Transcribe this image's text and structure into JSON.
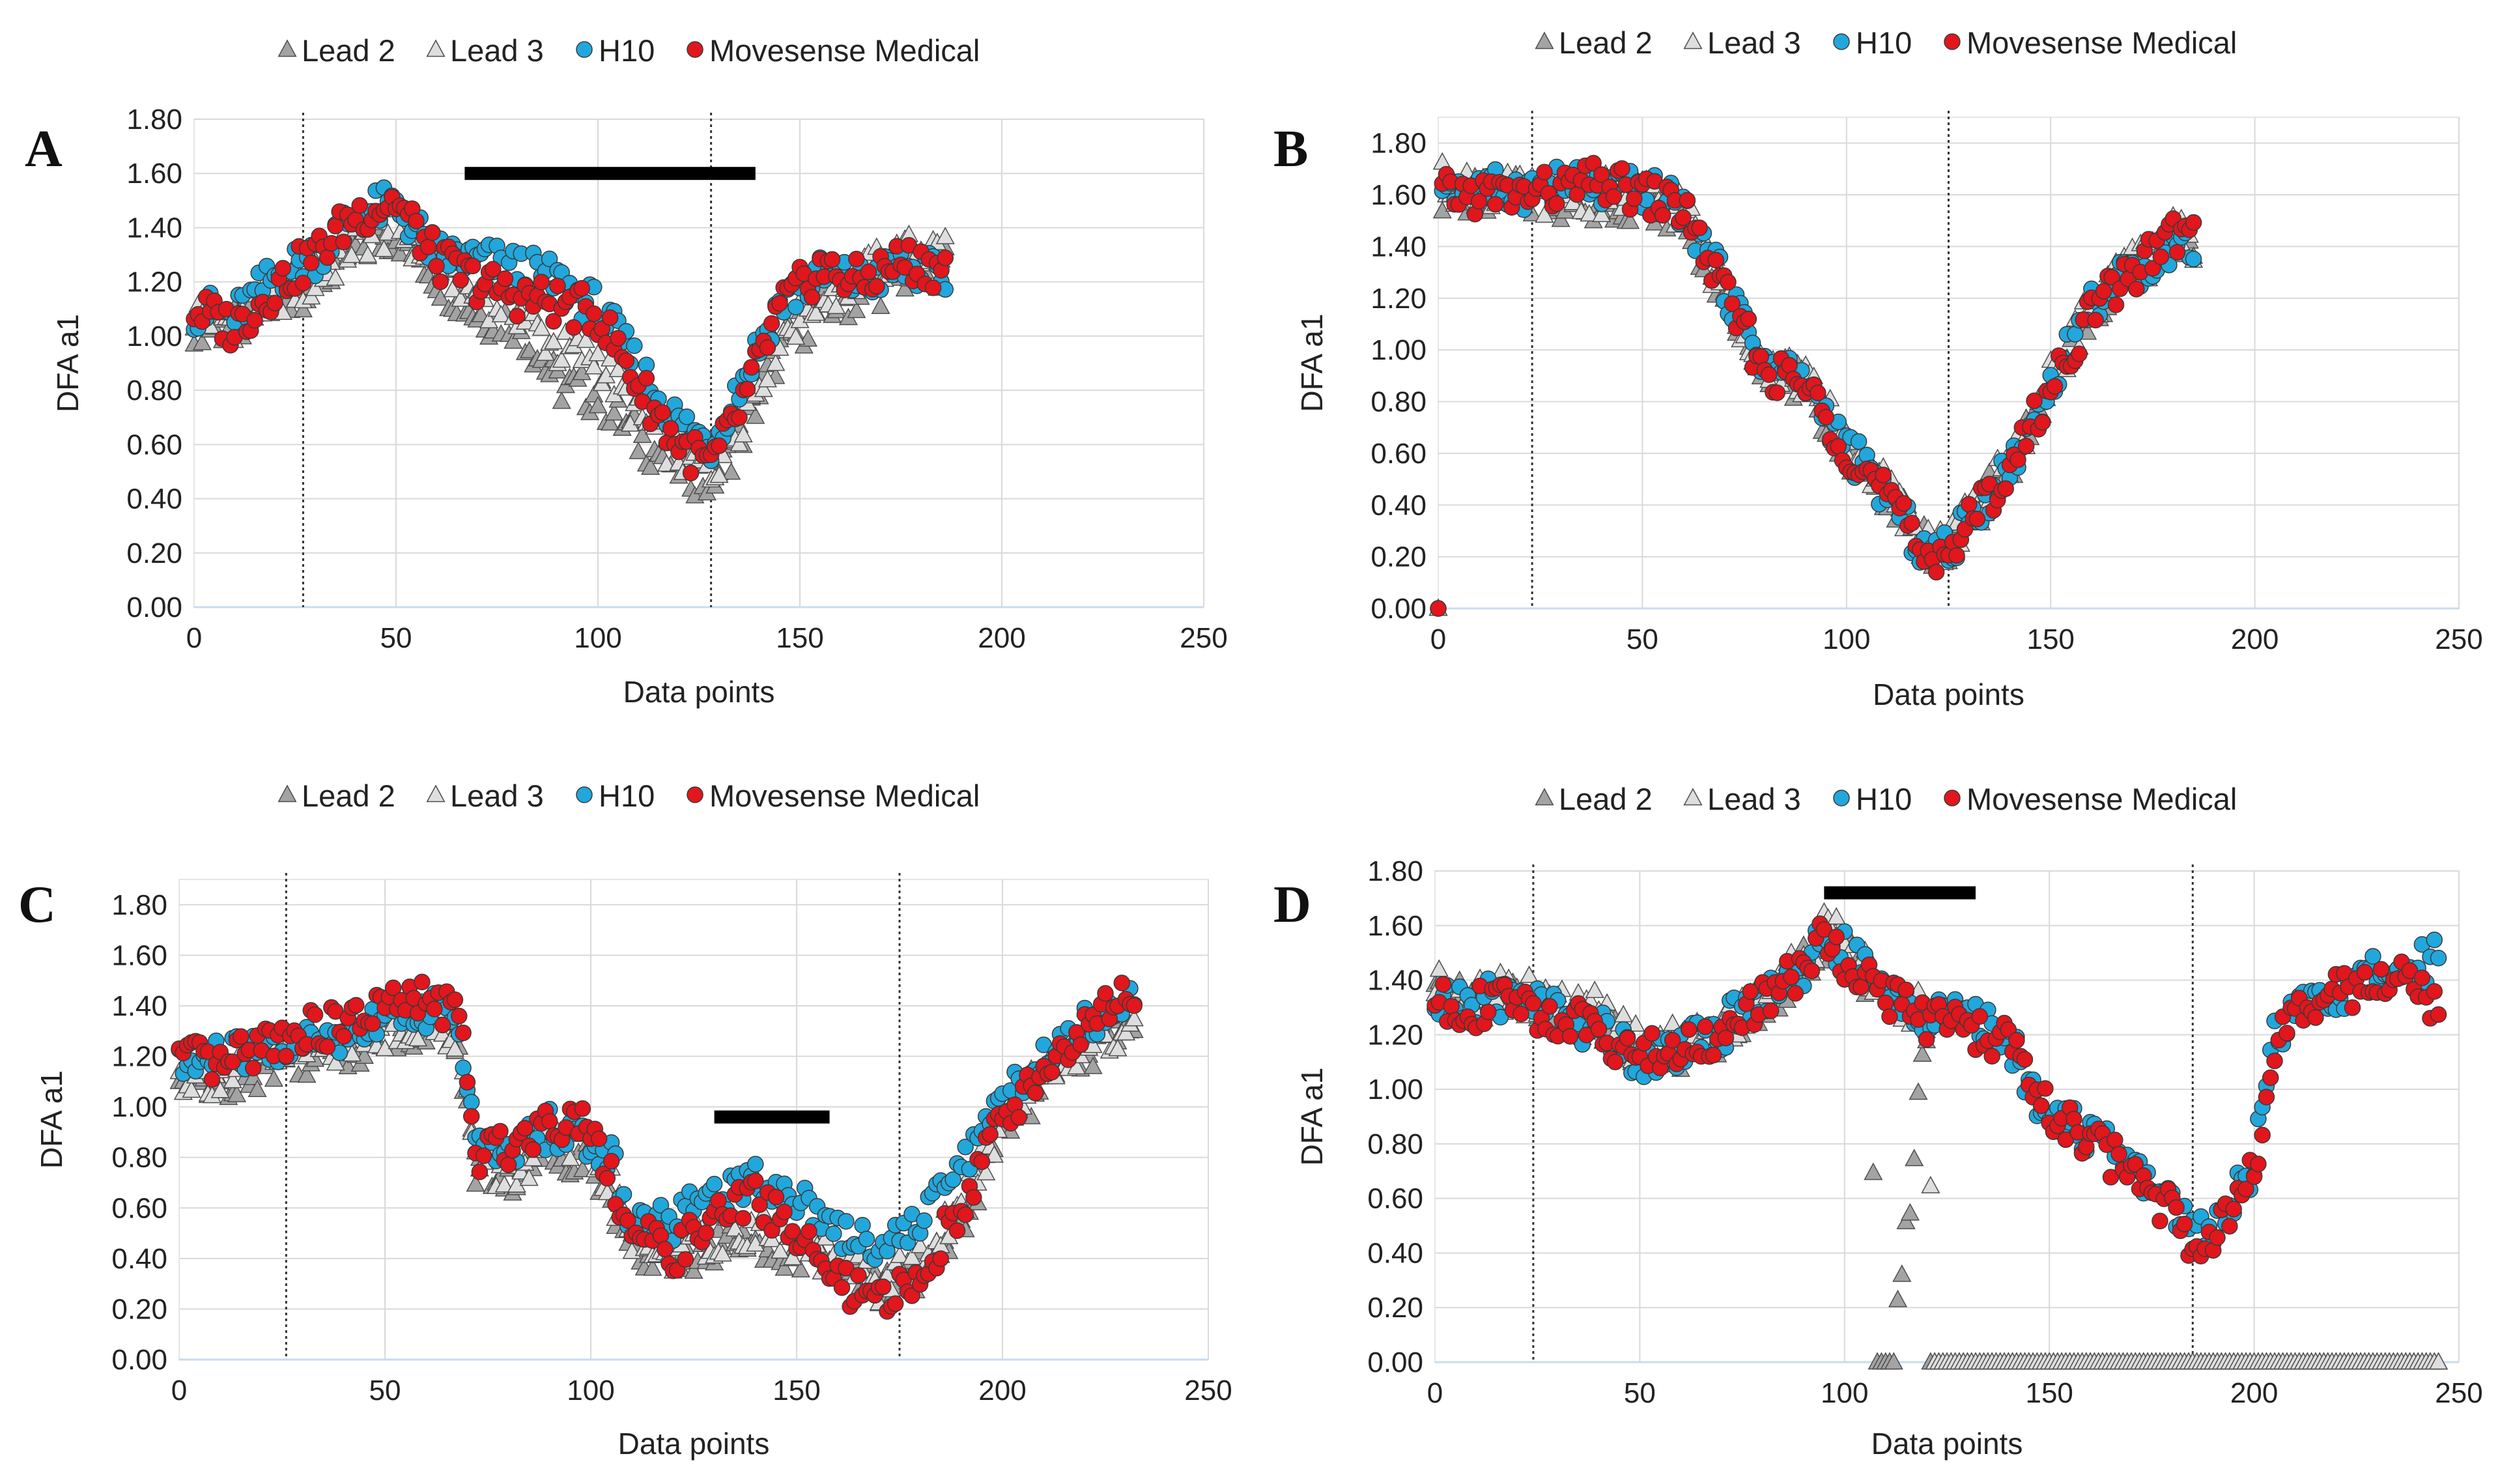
{
  "figure": {
    "colors": {
      "lead2": "#a3a3a3",
      "lead3": "#dedede",
      "h10": "#22a7dc",
      "movesense": "#e2161d",
      "grid": "#d9d9d9",
      "bar": "#000000"
    }
  },
  "chart_data": [
    {
      "type": "scatter",
      "panel": "A",
      "title": "",
      "xlabel": "Data points",
      "ylabel": "DFA a1",
      "xlim": [
        0,
        250
      ],
      "ylim": [
        0,
        1.8
      ],
      "xticks": [
        "0",
        "50",
        "100",
        "150",
        "200",
        "250"
      ],
      "yticks": [
        "0.00",
        "0.20",
        "0.40",
        "0.60",
        "0.80",
        "1.00",
        "1.20",
        "1.40",
        "1.60",
        "1.80"
      ],
      "grid": true,
      "legend": [
        "Lead 2",
        "Lead 3",
        "H10",
        "Movesense Medical"
      ],
      "legend_position": "top-center",
      "vlines": [
        27,
        128
      ],
      "bars": [
        {
          "x_start": 67,
          "x_end": 139,
          "y": 1.6
        }
      ],
      "n_points": 186,
      "series": [
        {
          "name": "Lead 2",
          "marker": "triangle",
          "x": [
            0,
            10,
            20,
            30,
            40,
            50,
            60,
            70,
            80,
            90,
            100,
            110,
            120,
            128,
            135,
            145,
            155,
            165,
            175,
            185
          ],
          "values": [
            1.05,
            1.03,
            1.12,
            1.2,
            1.32,
            1.38,
            1.22,
            1.08,
            1.05,
            0.82,
            0.78,
            0.62,
            0.52,
            0.46,
            0.62,
            0.95,
            1.1,
            1.15,
            1.22,
            1.26
          ]
        },
        {
          "name": "Lead 3",
          "marker": "triangle",
          "x": [
            0,
            10,
            20,
            30,
            40,
            50,
            60,
            70,
            80,
            90,
            100,
            110,
            120,
            128,
            135,
            145,
            155,
            165,
            175,
            185
          ],
          "values": [
            1.08,
            1.06,
            1.15,
            1.2,
            1.35,
            1.4,
            1.28,
            1.15,
            1.1,
            0.95,
            0.92,
            0.7,
            0.56,
            0.5,
            0.68,
            1.0,
            1.15,
            1.22,
            1.3,
            1.32
          ]
        },
        {
          "name": "H10",
          "marker": "circle",
          "x": [
            0,
            10,
            20,
            30,
            40,
            50,
            60,
            70,
            80,
            90,
            100,
            110,
            120,
            128,
            135,
            145,
            155,
            165,
            175,
            185
          ],
          "values": [
            1.1,
            1.07,
            1.22,
            1.3,
            1.45,
            1.48,
            1.3,
            1.28,
            1.25,
            1.2,
            1.1,
            0.88,
            0.68,
            0.6,
            0.82,
            1.12,
            1.22,
            1.2,
            1.25,
            1.22
          ]
        },
        {
          "name": "Movesense Medical",
          "marker": "circle",
          "x": [
            0,
            10,
            20,
            30,
            40,
            50,
            60,
            70,
            80,
            90,
            100,
            110,
            120,
            128,
            135,
            145,
            155,
            165,
            175,
            185
          ],
          "values": [
            1.1,
            1.03,
            1.18,
            1.3,
            1.45,
            1.5,
            1.28,
            1.2,
            1.15,
            1.12,
            1.08,
            0.82,
            0.6,
            0.52,
            0.72,
            1.1,
            1.25,
            1.2,
            1.28,
            1.25
          ]
        }
      ]
    },
    {
      "type": "scatter",
      "panel": "B",
      "title": "",
      "xlabel": "Data points",
      "ylabel": "DFA a1",
      "xlim": [
        0,
        250
      ],
      "ylim": [
        0,
        1.9
      ],
      "xticks": [
        "0",
        "50",
        "100",
        "150",
        "200",
        "250"
      ],
      "yticks": [
        "0.00",
        "0.20",
        "0.40",
        "0.60",
        "0.80",
        "1.00",
        "1.20",
        "1.40",
        "1.60",
        "1.80"
      ],
      "grid": true,
      "legend": [
        "Lead 2",
        "Lead 3",
        "H10",
        "Movesense Medical"
      ],
      "legend_position": "top-center",
      "vlines": [
        23,
        125
      ],
      "bars": [],
      "n_points": 185,
      "series": [
        {
          "name": "Lead 2",
          "marker": "triangle",
          "x": [
            0,
            1,
            10,
            20,
            30,
            40,
            50,
            60,
            70,
            80,
            90,
            100,
            110,
            118,
            125,
            130,
            140,
            150,
            160,
            170,
            180,
            185
          ],
          "values": [
            0.0,
            1.6,
            1.6,
            1.6,
            1.58,
            1.56,
            1.58,
            1.52,
            1.2,
            0.95,
            0.85,
            0.62,
            0.45,
            0.25,
            0.22,
            0.35,
            0.55,
            0.85,
            1.15,
            1.3,
            1.42,
            1.4
          ]
        },
        {
          "name": "Lead 3",
          "marker": "triangle",
          "x": [
            0,
            1,
            10,
            20,
            30,
            40,
            50,
            60,
            70,
            80,
            90,
            100,
            110,
            118,
            125,
            130,
            140,
            150,
            160,
            170,
            180,
            185
          ],
          "values": [
            0.0,
            1.65,
            1.62,
            1.6,
            1.6,
            1.6,
            1.6,
            1.55,
            1.22,
            0.95,
            0.88,
            0.64,
            0.46,
            0.26,
            0.24,
            0.36,
            0.57,
            0.88,
            1.18,
            1.32,
            1.45,
            1.42
          ]
        },
        {
          "name": "H10",
          "marker": "circle",
          "x": [
            0,
            1,
            10,
            20,
            30,
            40,
            50,
            60,
            70,
            80,
            90,
            100,
            110,
            118,
            125,
            130,
            140,
            150,
            160,
            170,
            180,
            185
          ],
          "values": [
            0.0,
            1.65,
            1.62,
            1.62,
            1.64,
            1.62,
            1.62,
            1.55,
            1.25,
            0.95,
            0.88,
            0.62,
            0.44,
            0.24,
            0.22,
            0.34,
            0.55,
            0.86,
            1.18,
            1.3,
            1.4,
            1.42
          ]
        },
        {
          "name": "Movesense Medical",
          "marker": "circle",
          "x": [
            0,
            1,
            10,
            20,
            30,
            40,
            50,
            60,
            70,
            80,
            90,
            100,
            110,
            118,
            125,
            130,
            140,
            150,
            160,
            170,
            180,
            185
          ],
          "values": [
            0.0,
            1.6,
            1.6,
            1.6,
            1.62,
            1.65,
            1.6,
            1.55,
            1.22,
            0.92,
            0.86,
            0.62,
            0.44,
            0.22,
            0.22,
            0.33,
            0.54,
            0.85,
            1.15,
            1.3,
            1.45,
            1.45
          ]
        }
      ]
    },
    {
      "type": "scatter",
      "panel": "C",
      "title": "",
      "xlabel": "Data points",
      "ylabel": "DFA a1",
      "xlim": [
        0,
        250
      ],
      "ylim": [
        0,
        1.9
      ],
      "xticks": [
        "0",
        "50",
        "100",
        "150",
        "200",
        "250"
      ],
      "yticks": [
        "0.00",
        "0.20",
        "0.40",
        "0.60",
        "0.80",
        "1.00",
        "1.20",
        "1.40",
        "1.60",
        "1.80"
      ],
      "grid": true,
      "legend": [
        "Lead 2",
        "Lead 3",
        "H10",
        "Movesense Medical"
      ],
      "legend_position": "top-center",
      "vlines": [
        26,
        175
      ],
      "bars": [
        {
          "x_start": 130,
          "x_end": 158,
          "y": 0.96
        }
      ],
      "n_points": 232,
      "series": [
        {
          "name": "Lead 2",
          "marker": "triangle",
          "x": [
            0,
            10,
            20,
            30,
            40,
            50,
            60,
            68,
            72,
            80,
            90,
            100,
            105,
            110,
            120,
            130,
            140,
            150,
            160,
            170,
            180,
            190,
            200,
            210,
            220,
            230
          ],
          "values": [
            1.1,
            1.1,
            1.15,
            1.2,
            1.22,
            1.28,
            1.32,
            1.25,
            0.75,
            0.7,
            0.82,
            0.8,
            0.65,
            0.42,
            0.4,
            0.45,
            0.48,
            0.42,
            0.35,
            0.28,
            0.35,
            0.55,
            0.9,
            1.1,
            1.22,
            1.3
          ]
        },
        {
          "name": "Lead 3",
          "marker": "triangle",
          "x": [
            0,
            10,
            20,
            30,
            40,
            50,
            60,
            68,
            72,
            80,
            90,
            100,
            105,
            110,
            120,
            130,
            140,
            150,
            160,
            170,
            180,
            190,
            200,
            210,
            220,
            230
          ],
          "values": [
            1.12,
            1.12,
            1.18,
            1.22,
            1.25,
            1.3,
            1.35,
            1.28,
            0.78,
            0.72,
            0.85,
            0.82,
            0.68,
            0.45,
            0.42,
            0.48,
            0.52,
            0.45,
            0.38,
            0.3,
            0.38,
            0.6,
            0.95,
            1.15,
            1.25,
            1.32
          ]
        },
        {
          "name": "H10",
          "marker": "circle",
          "x": [
            0,
            10,
            20,
            30,
            40,
            50,
            60,
            68,
            72,
            80,
            90,
            100,
            105,
            110,
            120,
            130,
            140,
            150,
            160,
            170,
            180,
            190,
            200,
            210,
            220,
            230
          ],
          "values": [
            1.15,
            1.2,
            1.22,
            1.25,
            1.28,
            1.38,
            1.38,
            1.35,
            0.85,
            0.8,
            0.92,
            0.85,
            0.8,
            0.55,
            0.55,
            0.65,
            0.72,
            0.65,
            0.52,
            0.45,
            0.55,
            0.78,
            1.02,
            1.2,
            1.32,
            1.45
          ]
        },
        {
          "name": "Movesense Medical",
          "marker": "circle",
          "x": [
            0,
            10,
            20,
            30,
            40,
            50,
            60,
            68,
            72,
            80,
            90,
            100,
            105,
            110,
            120,
            130,
            140,
            150,
            160,
            170,
            180,
            190,
            200,
            210,
            220,
            230
          ],
          "values": [
            1.2,
            1.15,
            1.25,
            1.3,
            1.32,
            1.4,
            1.42,
            1.38,
            0.8,
            0.85,
            0.95,
            0.95,
            0.72,
            0.5,
            0.42,
            0.55,
            0.65,
            0.5,
            0.3,
            0.22,
            0.32,
            0.62,
            0.95,
            1.15,
            1.3,
            1.45
          ]
        }
      ]
    },
    {
      "type": "scatter",
      "panel": "D",
      "title": "",
      "xlabel": "Data points",
      "ylabel": "DFA a1",
      "xlim": [
        0,
        250
      ],
      "ylim": [
        0,
        1.8
      ],
      "xticks": [
        "0",
        "50",
        "100",
        "150",
        "200",
        "250"
      ],
      "yticks": [
        "0.00",
        "0.20",
        "0.40",
        "0.60",
        "0.80",
        "1.00",
        "1.20",
        "1.40",
        "1.60",
        "1.80"
      ],
      "grid": true,
      "legend": [
        "Lead 2",
        "Lead 3",
        "H10",
        "Movesense Medical"
      ],
      "legend_position": "top-center",
      "vlines": [
        24,
        185
      ],
      "bars": [
        {
          "x_start": 95,
          "x_end": 132,
          "y": 1.72
        }
      ],
      "n_points": 245,
      "series": [
        {
          "name": "Lead 2",
          "marker": "triangle",
          "x": [
            0,
            10,
            20,
            30,
            40,
            50,
            60,
            70,
            80,
            90,
            95,
            100,
            106,
            108,
            110,
            112,
            120,
            121,
            130,
            140,
            150,
            160,
            170,
            180,
            185,
            190,
            200,
            210,
            220,
            230,
            240,
            245
          ],
          "values": [
            1.35,
            1.32,
            1.35,
            1.28,
            1.25,
            1.12,
            1.15,
            1.2,
            1.32,
            1.45,
            1.55,
            1.5,
            1.38,
            0.0,
            0.0,
            0.0,
            1.25,
            0.0,
            0.0,
            0.0,
            0.0,
            0.0,
            0.0,
            0.0,
            0.0,
            0.0,
            0.0,
            0.0,
            0.0,
            0.0,
            0.0,
            0.0
          ]
        },
        {
          "name": "Lead 3",
          "marker": "triangle",
          "x": [
            0,
            10,
            20,
            30,
            40,
            50,
            60,
            70,
            80,
            90,
            95,
            100,
            110,
            120,
            122,
            130,
            140,
            150,
            160,
            170,
            180,
            190,
            200,
            210,
            220,
            230,
            240,
            245
          ],
          "values": [
            1.38,
            1.35,
            1.36,
            1.3,
            1.28,
            1.15,
            1.18,
            1.22,
            1.35,
            1.48,
            1.58,
            1.55,
            1.32,
            1.28,
            0.0,
            0.0,
            0.0,
            0.0,
            0.0,
            0.0,
            0.0,
            0.0,
            0.0,
            0.0,
            0.0,
            0.0,
            0.0,
            0.0
          ]
        },
        {
          "name": "H10",
          "marker": "circle",
          "x": [
            0,
            10,
            20,
            30,
            40,
            50,
            60,
            70,
            80,
            90,
            95,
            100,
            110,
            120,
            130,
            140,
            145,
            150,
            160,
            170,
            180,
            185,
            190,
            195,
            200,
            205,
            210,
            220,
            230,
            240,
            245
          ],
          "values": [
            1.3,
            1.32,
            1.35,
            1.28,
            1.22,
            1.12,
            1.15,
            1.22,
            1.35,
            1.45,
            1.55,
            1.5,
            1.35,
            1.28,
            1.25,
            1.2,
            1.0,
            0.95,
            0.82,
            0.72,
            0.58,
            0.48,
            0.5,
            0.62,
            0.72,
            1.2,
            1.28,
            1.35,
            1.42,
            1.45,
            1.5
          ]
        },
        {
          "name": "Movesense Medical",
          "marker": "circle",
          "x": [
            0,
            10,
            20,
            30,
            40,
            50,
            60,
            70,
            80,
            90,
            95,
            100,
            110,
            120,
            130,
            140,
            145,
            150,
            160,
            170,
            180,
            185,
            190,
            195,
            200,
            205,
            210,
            220,
            230,
            240,
            245
          ],
          "values": [
            1.32,
            1.3,
            1.32,
            1.25,
            1.22,
            1.12,
            1.15,
            1.2,
            1.32,
            1.45,
            1.55,
            1.48,
            1.35,
            1.25,
            1.22,
            1.18,
            1.02,
            0.92,
            0.8,
            0.7,
            0.55,
            0.45,
            0.48,
            0.6,
            0.7,
            1.15,
            1.25,
            1.35,
            1.4,
            1.4,
            1.3
          ]
        }
      ]
    }
  ]
}
